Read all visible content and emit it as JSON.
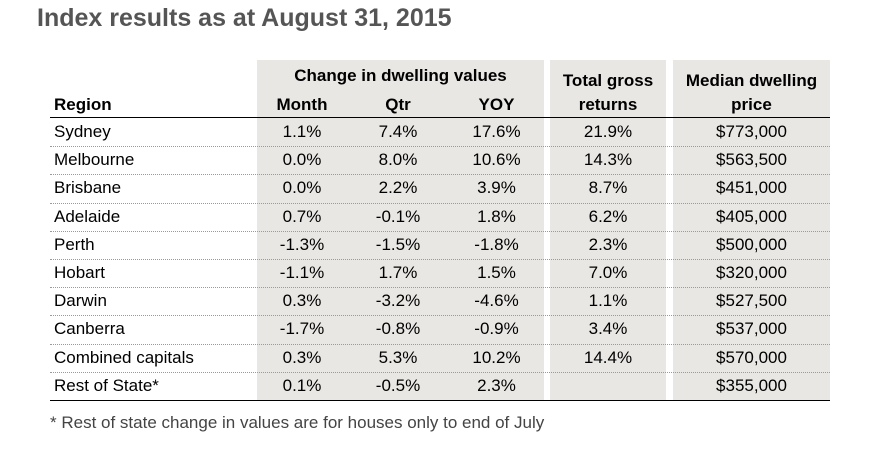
{
  "title": "Index results as at August 31, 2015",
  "headers": {
    "group": "Change in dwelling values",
    "region": "Region",
    "month": "Month",
    "qtr": "Qtr",
    "yoy": "YOY",
    "total_line1": "Total gross",
    "total_line2": "returns",
    "median_line1": "Median dwelling",
    "median_line2": "price"
  },
  "rows": [
    {
      "region": "Sydney",
      "month": "1.1%",
      "qtr": "7.4%",
      "yoy": "17.6%",
      "total": "21.9%",
      "median": "$773,000"
    },
    {
      "region": "Melbourne",
      "month": "0.0%",
      "qtr": "8.0%",
      "yoy": "10.6%",
      "total": "14.3%",
      "median": "$563,500"
    },
    {
      "region": "Brisbane",
      "month": "0.0%",
      "qtr": "2.2%",
      "yoy": "3.9%",
      "total": "8.7%",
      "median": "$451,000"
    },
    {
      "region": "Adelaide",
      "month": "0.7%",
      "qtr": "-0.1%",
      "yoy": "1.8%",
      "total": "6.2%",
      "median": "$405,000"
    },
    {
      "region": "Perth",
      "month": "-1.3%",
      "qtr": "-1.5%",
      "yoy": "-1.8%",
      "total": "2.3%",
      "median": "$500,000"
    },
    {
      "region": "Hobart",
      "month": "-1.1%",
      "qtr": "1.7%",
      "yoy": "1.5%",
      "total": "7.0%",
      "median": "$320,000"
    },
    {
      "region": "Darwin",
      "month": "0.3%",
      "qtr": "-3.2%",
      "yoy": "-4.6%",
      "total": "1.1%",
      "median": "$527,500"
    },
    {
      "region": "Canberra",
      "month": "-1.7%",
      "qtr": "-0.8%",
      "yoy": "-0.9%",
      "total": "3.4%",
      "median": "$537,000"
    },
    {
      "region": "Combined capitals",
      "month": "0.3%",
      "qtr": "5.3%",
      "yoy": "10.2%",
      "total": "14.4%",
      "median": "$570,000"
    },
    {
      "region": "Rest of State*",
      "month": "0.1%",
      "qtr": "-0.5%",
      "yoy": "2.3%",
      "total": "",
      "median": "$355,000"
    }
  ],
  "footnote": "* Rest of state change in values are for houses only to end of July",
  "colors": {
    "shade": "#e9e7e4",
    "title": "#555555"
  }
}
